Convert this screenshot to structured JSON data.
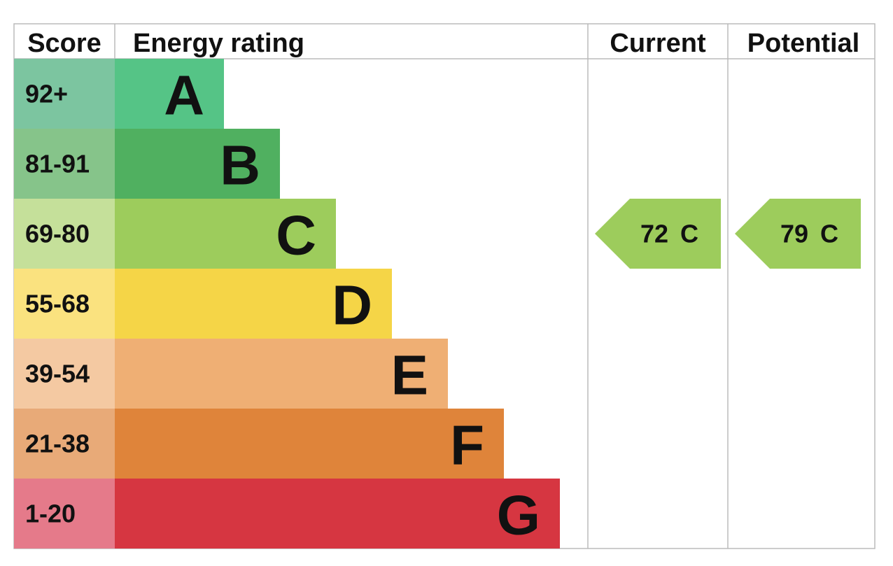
{
  "header": {
    "score": "Score",
    "rating": "Energy rating",
    "current": "Current",
    "potential": "Potential"
  },
  "bands": [
    {
      "score": "92+",
      "letter": "A",
      "color": "#55c486",
      "score_color": "#7cc5a0"
    },
    {
      "score": "81-91",
      "letter": "B",
      "color": "#50b060",
      "score_color": "#86c48a"
    },
    {
      "score": "69-80",
      "letter": "C",
      "color": "#9dcc5c",
      "score_color": "#c5e09a"
    },
    {
      "score": "55-68",
      "letter": "D",
      "color": "#f5d547",
      "score_color": "#fae27f"
    },
    {
      "score": "39-54",
      "letter": "E",
      "color": "#efaf74",
      "score_color": "#f4c9a2"
    },
    {
      "score": "21-38",
      "letter": "F",
      "color": "#df843a",
      "score_color": "#e8aa78"
    },
    {
      "score": "1-20",
      "letter": "G",
      "color": "#d63641",
      "score_color": "#e57a8a"
    }
  ],
  "current": {
    "value": 72,
    "rating": "C"
  },
  "potential": {
    "value": 79,
    "rating": "C"
  }
}
